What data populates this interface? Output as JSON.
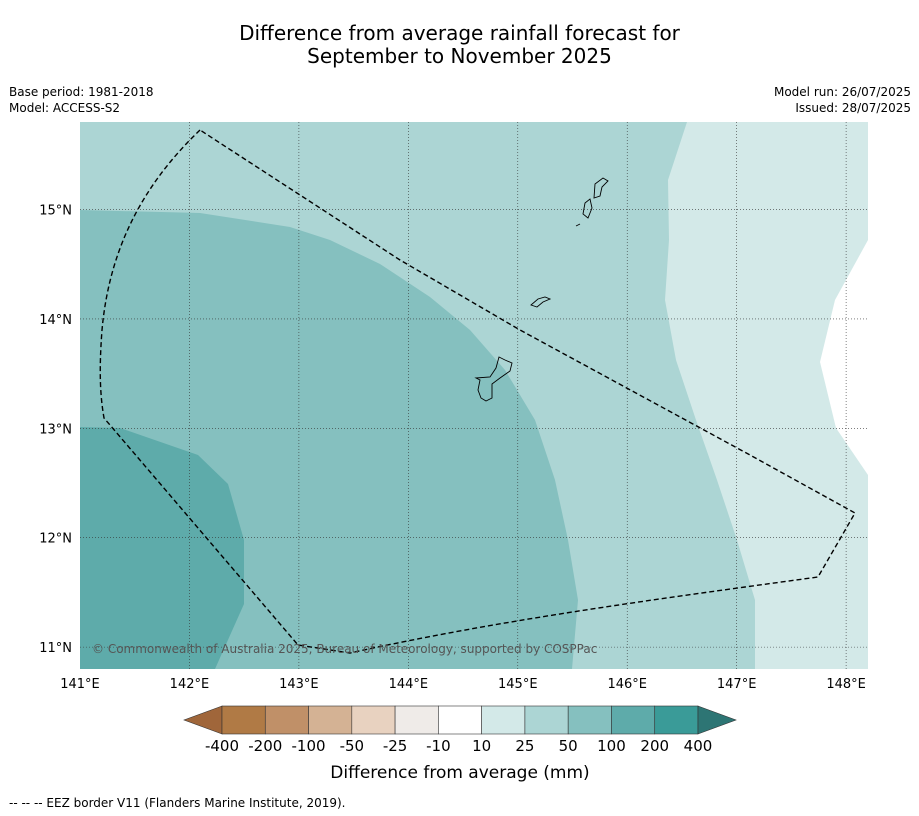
{
  "title": {
    "line1": "Difference from average rainfall forecast for",
    "line2": "September to November 2025"
  },
  "meta_left": {
    "base_period": "Base period: 1981-2018",
    "model": "Model: ACCESS-S2"
  },
  "meta_right": {
    "model_run": "Model run: 26/07/2025",
    "issued": "Issued: 28/07/2025"
  },
  "map": {
    "lon_ticks": [
      "141°E",
      "142°E",
      "143°E",
      "144°E",
      "145°E",
      "146°E",
      "147°E",
      "148°E"
    ],
    "lat_ticks": [
      "15°N",
      "14°N",
      "13°N",
      "12°N",
      "11°N"
    ],
    "lon_values": [
      141,
      142,
      143,
      144,
      145,
      146,
      147,
      148
    ],
    "lat_values": [
      15,
      14,
      13,
      12,
      11
    ],
    "lon_range": [
      141.0,
      148.2
    ],
    "lat_range": [
      10.8,
      15.8
    ],
    "grid": true,
    "copyright": "© Commonwealth of Australia 2025, Bureau of Meteorology, supported by COSPPac"
  },
  "colorbar": {
    "labels": [
      "-400",
      "-200",
      "-100",
      "-50",
      "-25",
      "-10",
      "10",
      "25",
      "50",
      "100",
      "200",
      "400"
    ],
    "colors": [
      "#a0663a",
      "#b07a45",
      "#c09068",
      "#d4b294",
      "#e8d2c0",
      "#efebe8",
      "#ffffff",
      "#d3e9e8",
      "#acd5d4",
      "#85c0bf",
      "#5eabaa",
      "#3a9b98",
      "#2d7574"
    ],
    "label": "Difference from average (mm)"
  },
  "footer": "--  --  -- EEZ border V11 (Flanders Marine Institute, 2019)."
}
